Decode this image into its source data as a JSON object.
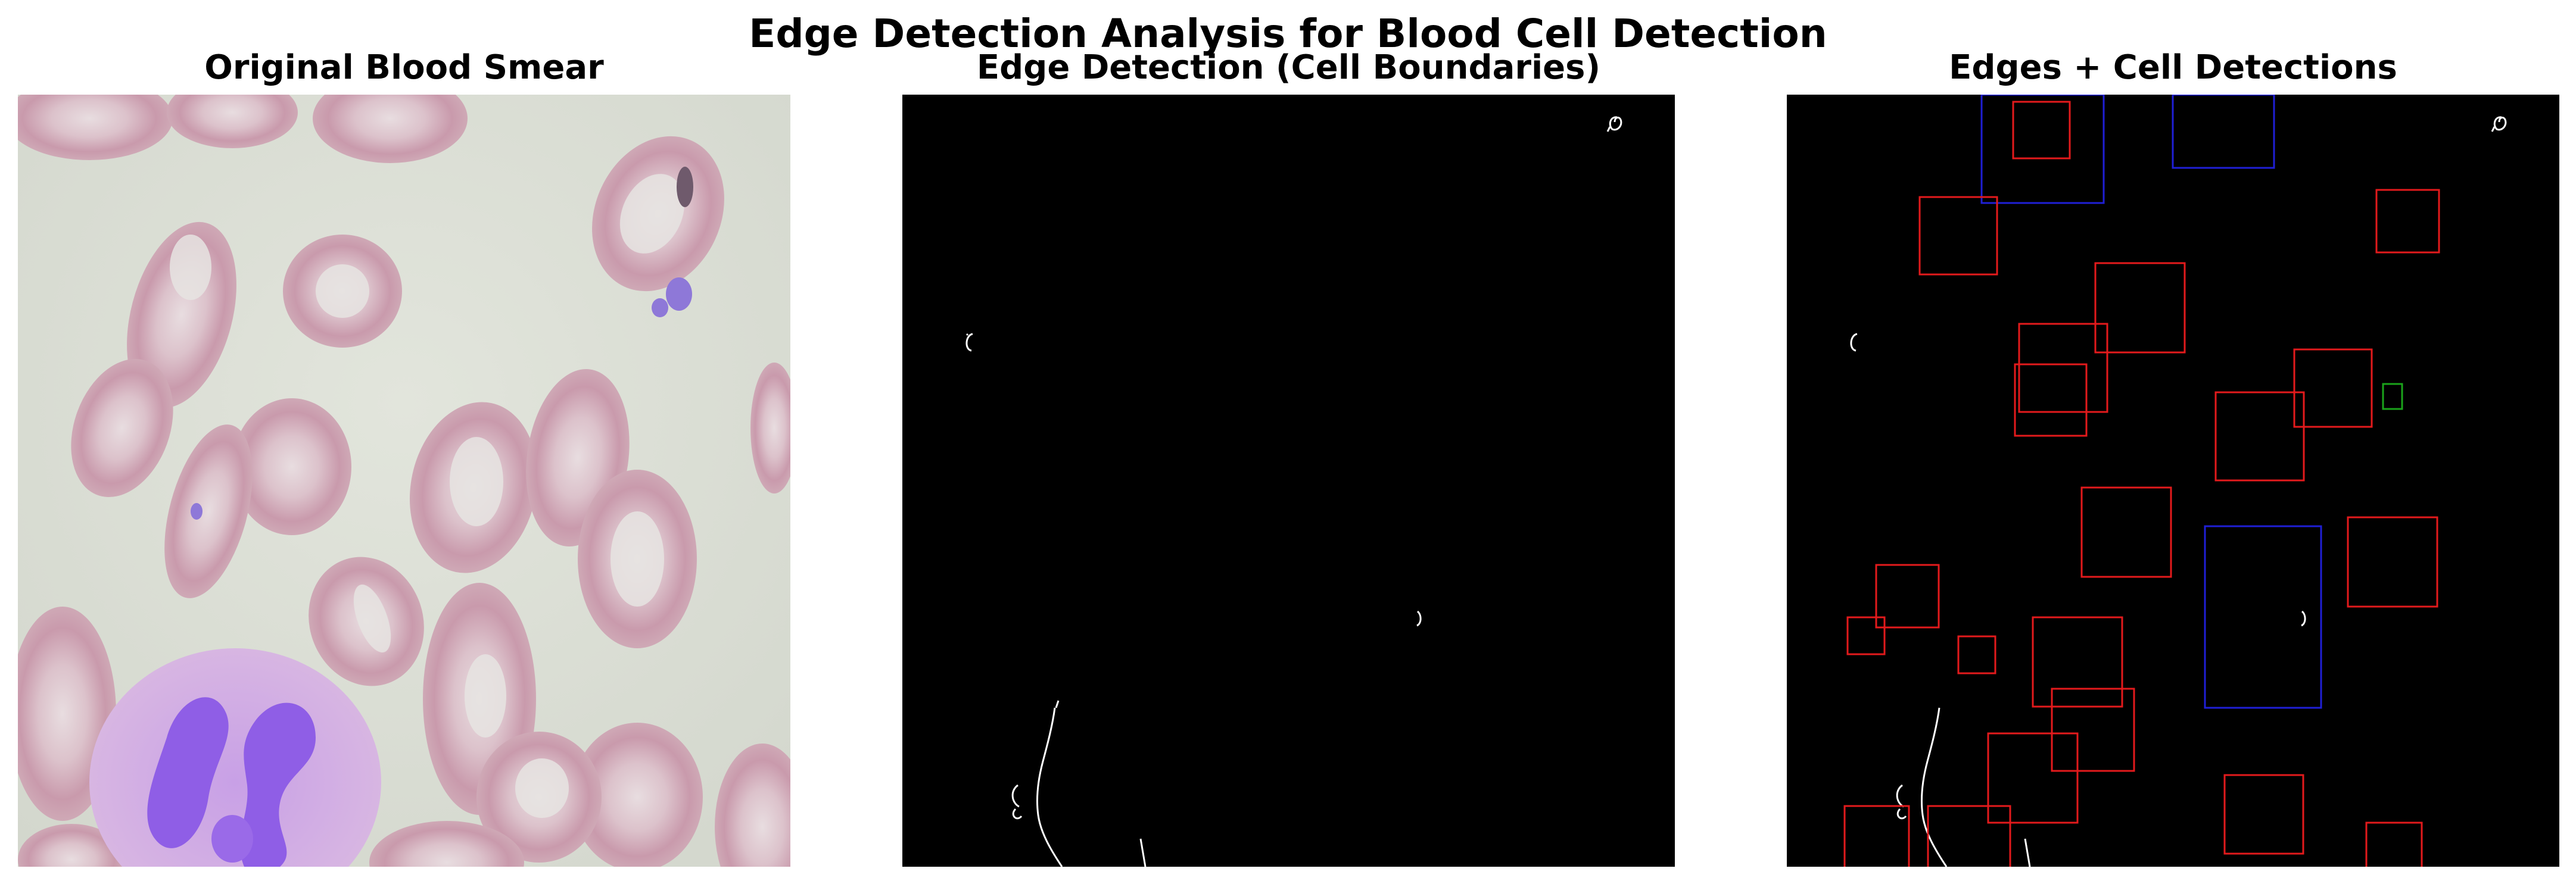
{
  "figure": {
    "title": "Edge Detection Analysis for Blood Cell Detection"
  },
  "panels": [
    {
      "title": "Original Blood Smear"
    },
    {
      "title": "Edge Detection (Cell Boundaries)"
    },
    {
      "title": "Edges + Cell Detections"
    }
  ],
  "colors": {
    "rbc_box": "#e31a1c",
    "wbc_box": "#1f1fd6",
    "platelet_box": "#1aa31a",
    "edge": "#ffffff",
    "edge_background": "#000000",
    "smear_background": "#dcdfd6",
    "rbc_fill": "#cfa9b4",
    "wbc_nucleus": "#8f5ee6"
  }
}
